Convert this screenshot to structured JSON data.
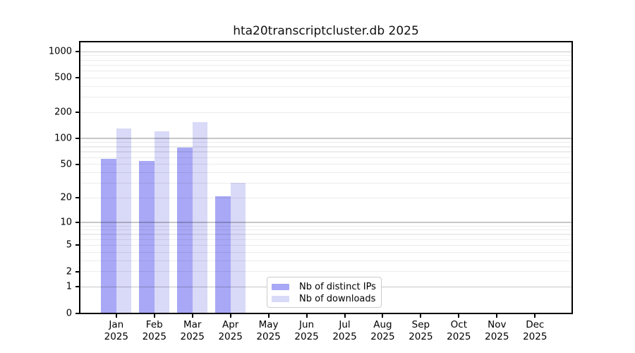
{
  "chart_data": {
    "type": "bar",
    "title": "hta20transcriptcluster.db 2025",
    "categories": [
      "Jan",
      "Feb",
      "Mar",
      "Apr",
      "May",
      "Jun",
      "Jul",
      "Aug",
      "Sep",
      "Oct",
      "Nov",
      "Dec"
    ],
    "year_label": "2025",
    "series": [
      {
        "name": "Nb of distinct IPs",
        "color": "#a8a8f6",
        "values": [
          58,
          55,
          78,
          21,
          null,
          null,
          null,
          null,
          null,
          null,
          null,
          null
        ]
      },
      {
        "name": "Nb of downloads",
        "color": "#d9d9f8",
        "values": [
          130,
          120,
          155,
          30,
          null,
          null,
          null,
          null,
          null,
          null,
          null,
          null
        ]
      }
    ],
    "y_axis": {
      "scale": "log10(x+1)",
      "ticks": [
        1000,
        500,
        200,
        100,
        50,
        20,
        10,
        5,
        2,
        1,
        0
      ],
      "major_gridlines": [
        1,
        10,
        100,
        1000
      ],
      "minor_gridlines": [
        2,
        3,
        4,
        5,
        6,
        7,
        8,
        9,
        20,
        30,
        40,
        50,
        60,
        70,
        80,
        90,
        200,
        300,
        400,
        500,
        600,
        700,
        800,
        900
      ],
      "range": [
        0,
        1000
      ]
    },
    "grid": "on",
    "legend_position": "bottom-center",
    "colors": {
      "grid_major": "#c7c7c7",
      "grid_minor": "#ededed",
      "spine": "#000000",
      "background": "#ffffff"
    }
  }
}
